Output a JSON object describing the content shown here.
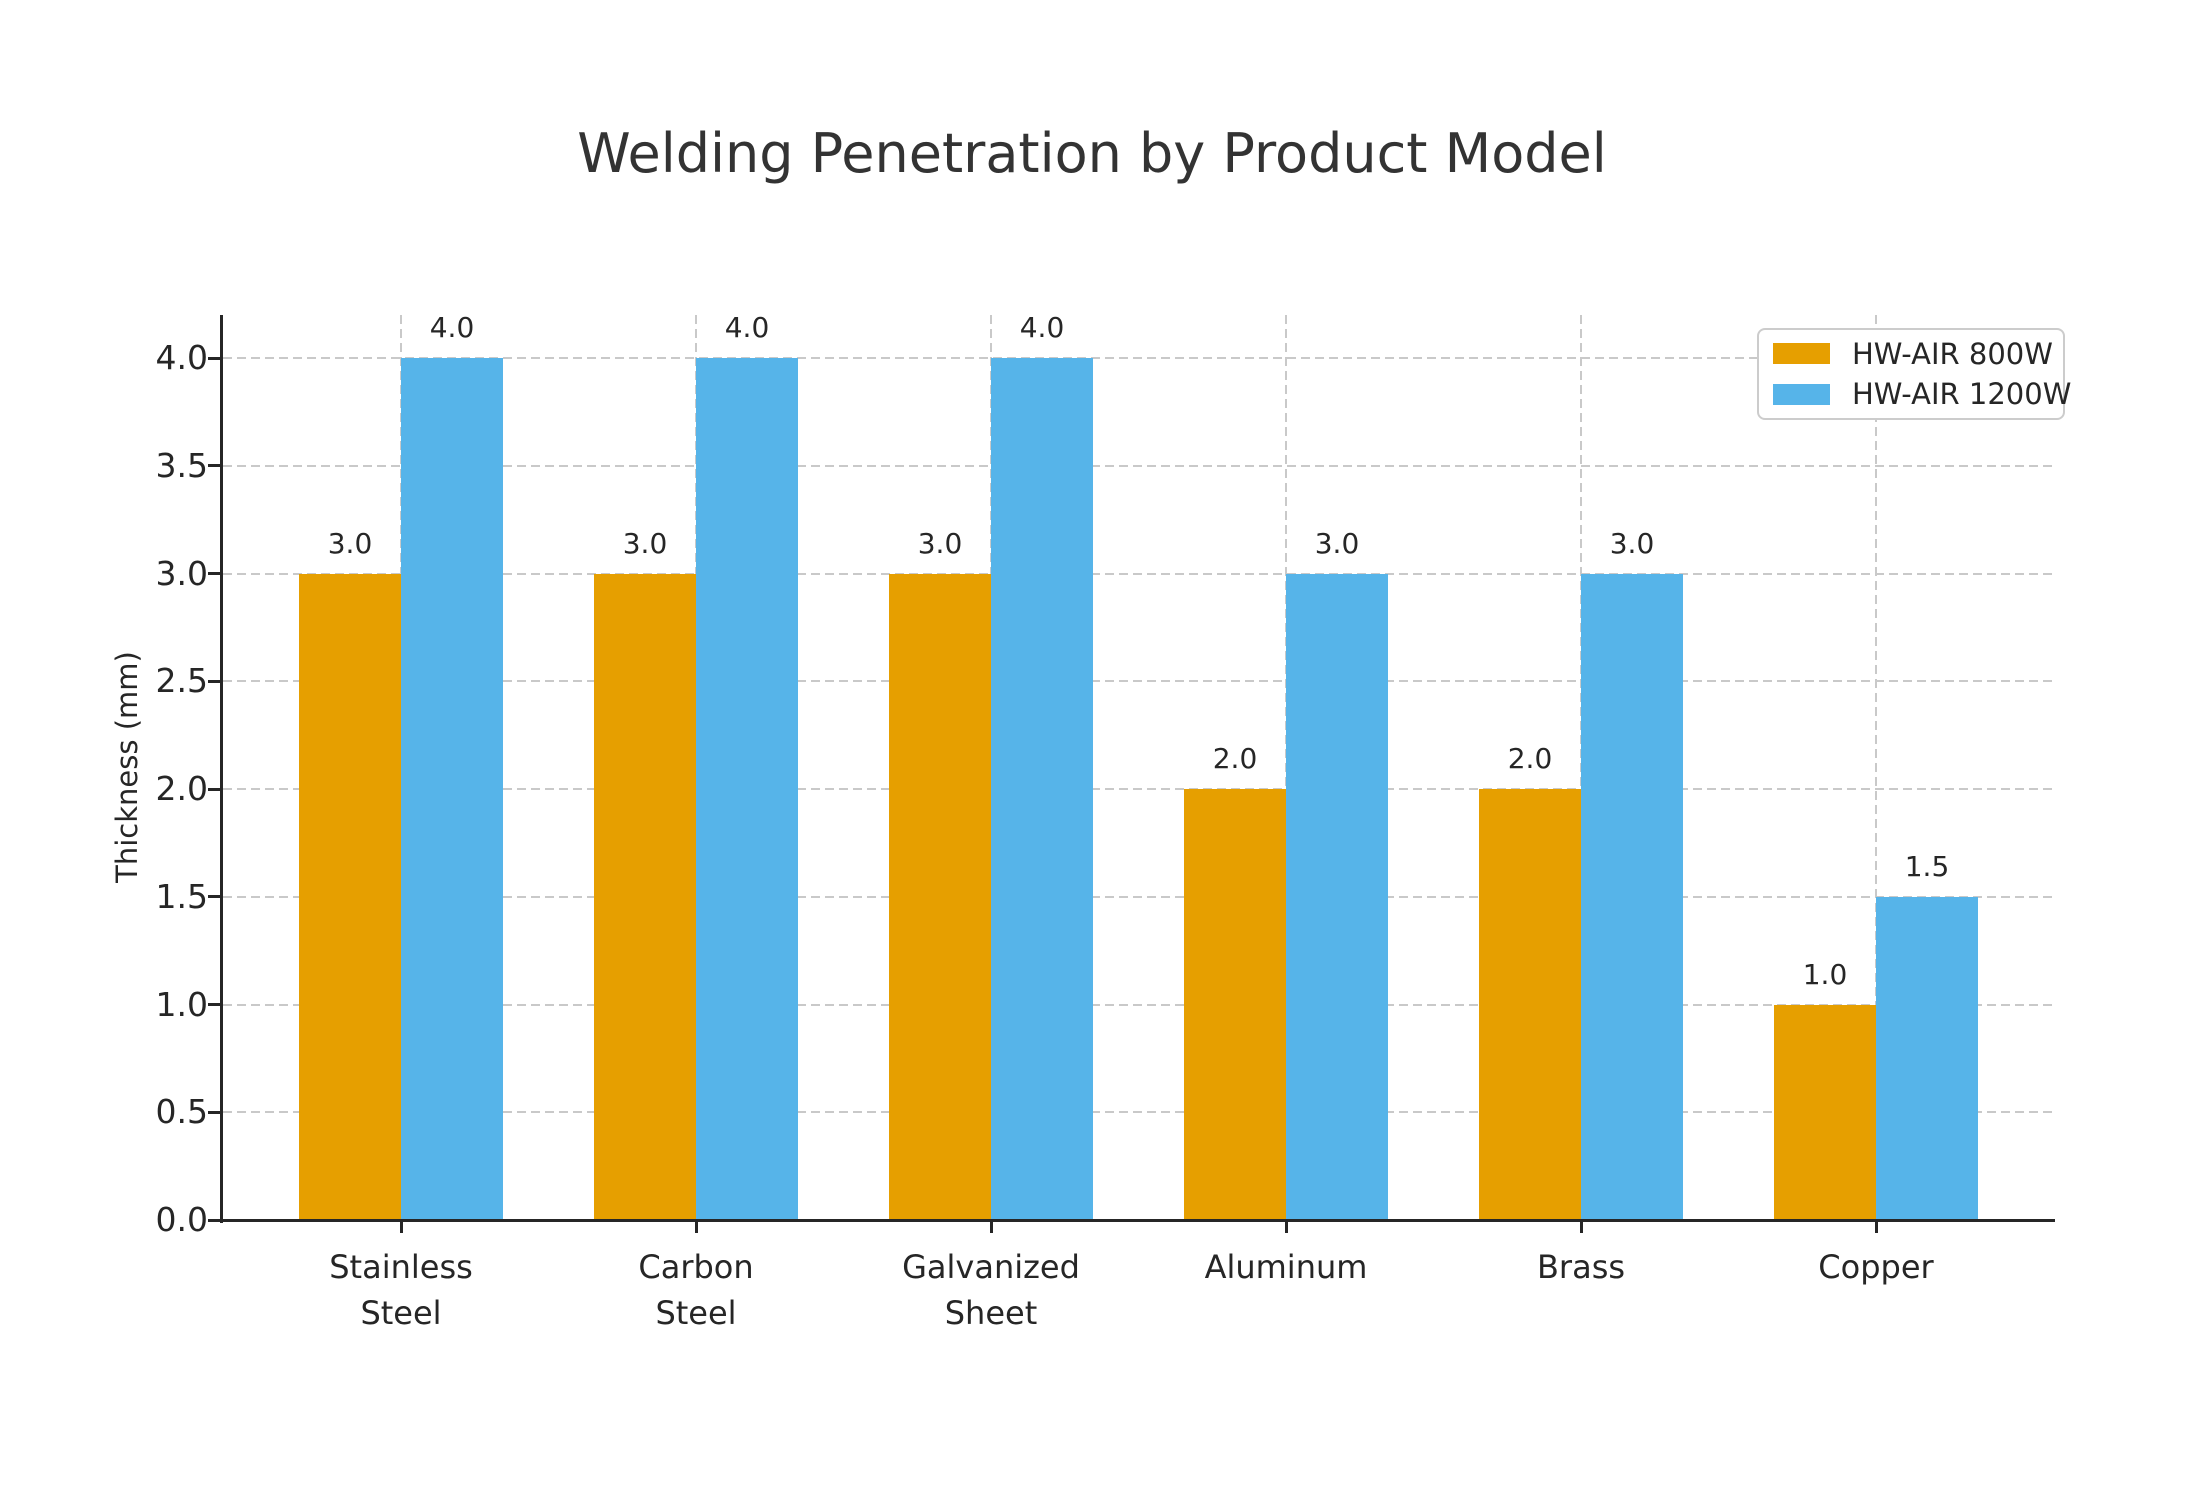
{
  "title": "Welding Penetration by Product Model",
  "chart_data": {
    "type": "bar",
    "categories": [
      "Stainless\nSteel",
      "Carbon\nSteel",
      "Galvanized\nSheet",
      "Aluminum",
      "Brass",
      "Copper"
    ],
    "series": [
      {
        "name": "HW-AIR 800W",
        "color": "#E69F00",
        "values": [
          3.0,
          3.0,
          3.0,
          2.0,
          2.0,
          1.0
        ]
      },
      {
        "name": "HW-AIR 1200W",
        "color": "#56B4E9",
        "values": [
          4.0,
          4.0,
          4.0,
          3.0,
          3.0,
          1.5
        ]
      }
    ],
    "xlabel": "",
    "ylabel": "Thickness (mm)",
    "ylim": [
      0,
      4.2
    ],
    "yticks": [
      0.0,
      0.5,
      1.0,
      1.5,
      2.0,
      2.5,
      3.0,
      3.5,
      4.0
    ],
    "ytick_labels": [
      "0.0",
      "0.5",
      "1.0",
      "1.5",
      "2.0",
      "2.5",
      "3.0",
      "3.5",
      "4.0"
    ],
    "grid": "dashed horizontal and vertical",
    "value_labels": true,
    "value_label_format": "one-decimal",
    "legend_position": "upper right",
    "colors": {
      "grid": "#c9c9c9",
      "spine": "#262626",
      "text": "#262626",
      "title": "#333333",
      "background": "#ffffff"
    }
  }
}
